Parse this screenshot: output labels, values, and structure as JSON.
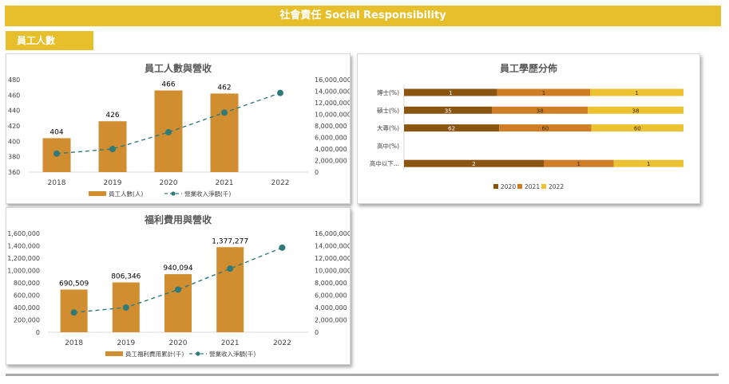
{
  "header": {
    "title": "社會責任 Social Responsibility"
  },
  "section": {
    "label": "員工人數"
  },
  "colors": {
    "accent": "#e6bf2a",
    "bar": "#d18e31",
    "line": "#2f7a7a",
    "edu2020": "#8a5510",
    "edu2021": "#d07e26",
    "edu2022": "#ecc233"
  },
  "chart_data": [
    {
      "type": "bar",
      "title": "員工人數與營收",
      "categories": [
        "2018",
        "2019",
        "2020",
        "2021",
        "2022"
      ],
      "series": [
        {
          "name": "員工人數(人)",
          "values": [
            404,
            426,
            466,
            462,
            null
          ],
          "data_labels": [
            "404",
            "426",
            "466",
            "462",
            ""
          ]
        },
        {
          "name": "營業收入淨額(千)",
          "type": "line",
          "axis": "right",
          "values": [
            3200000,
            4000000,
            6900000,
            10300000,
            13700000
          ]
        }
      ],
      "ylim": [
        360,
        480
      ],
      "yticks": [
        "360",
        "380",
        "400",
        "420",
        "440",
        "460",
        "480"
      ],
      "y2lim": [
        0,
        16000000
      ],
      "y2ticks": [
        "0",
        "2,000,000",
        "4,000,000",
        "6,000,000",
        "8,000,000",
        "10,000,000",
        "12,000,000",
        "14,000,000",
        "16,000,000"
      ],
      "legend": "bottom"
    },
    {
      "type": "bar",
      "title": "福利費用與營收",
      "categories": [
        "2018",
        "2019",
        "2020",
        "2021",
        "2022"
      ],
      "series": [
        {
          "name": "員工福利費用累計(千)",
          "values": [
            690509,
            806346,
            940094,
            1377277,
            null
          ],
          "data_labels": [
            "690,509",
            "806,346",
            "940,094",
            "1,377,277",
            ""
          ]
        },
        {
          "name": "營業收入淨額(千)",
          "type": "line",
          "axis": "right",
          "values": [
            3200000,
            4000000,
            6900000,
            10300000,
            13700000
          ]
        }
      ],
      "ylim": [
        0,
        1600000
      ],
      "yticks": [
        "0",
        "200,000",
        "400,000",
        "600,000",
        "800,000",
        "1,000,000",
        "1,200,000",
        "1,400,000",
        "1,600,000"
      ],
      "y2lim": [
        0,
        16000000
      ],
      "y2ticks": [
        "0",
        "2,000,000",
        "4,000,000",
        "6,000,000",
        "8,000,000",
        "10,000,000",
        "12,000,000",
        "14,000,000",
        "16,000,000"
      ],
      "legend": "bottom"
    },
    {
      "type": "bar",
      "stacked": true,
      "orientation": "horizontal",
      "title": "員工學歷分佈",
      "categories": [
        "博士(%)",
        "碩士(%)",
        "大專(%)",
        "高中(%)",
        "高中以下..."
      ],
      "series": [
        {
          "name": "2020",
          "values": [
            1,
            35,
            62,
            0,
            2
          ]
        },
        {
          "name": "2021",
          "values": [
            1,
            38,
            60,
            0,
            1
          ]
        },
        {
          "name": "2022",
          "values": [
            1,
            38,
            60,
            0,
            1
          ]
        }
      ],
      "legend": "bottom"
    }
  ]
}
